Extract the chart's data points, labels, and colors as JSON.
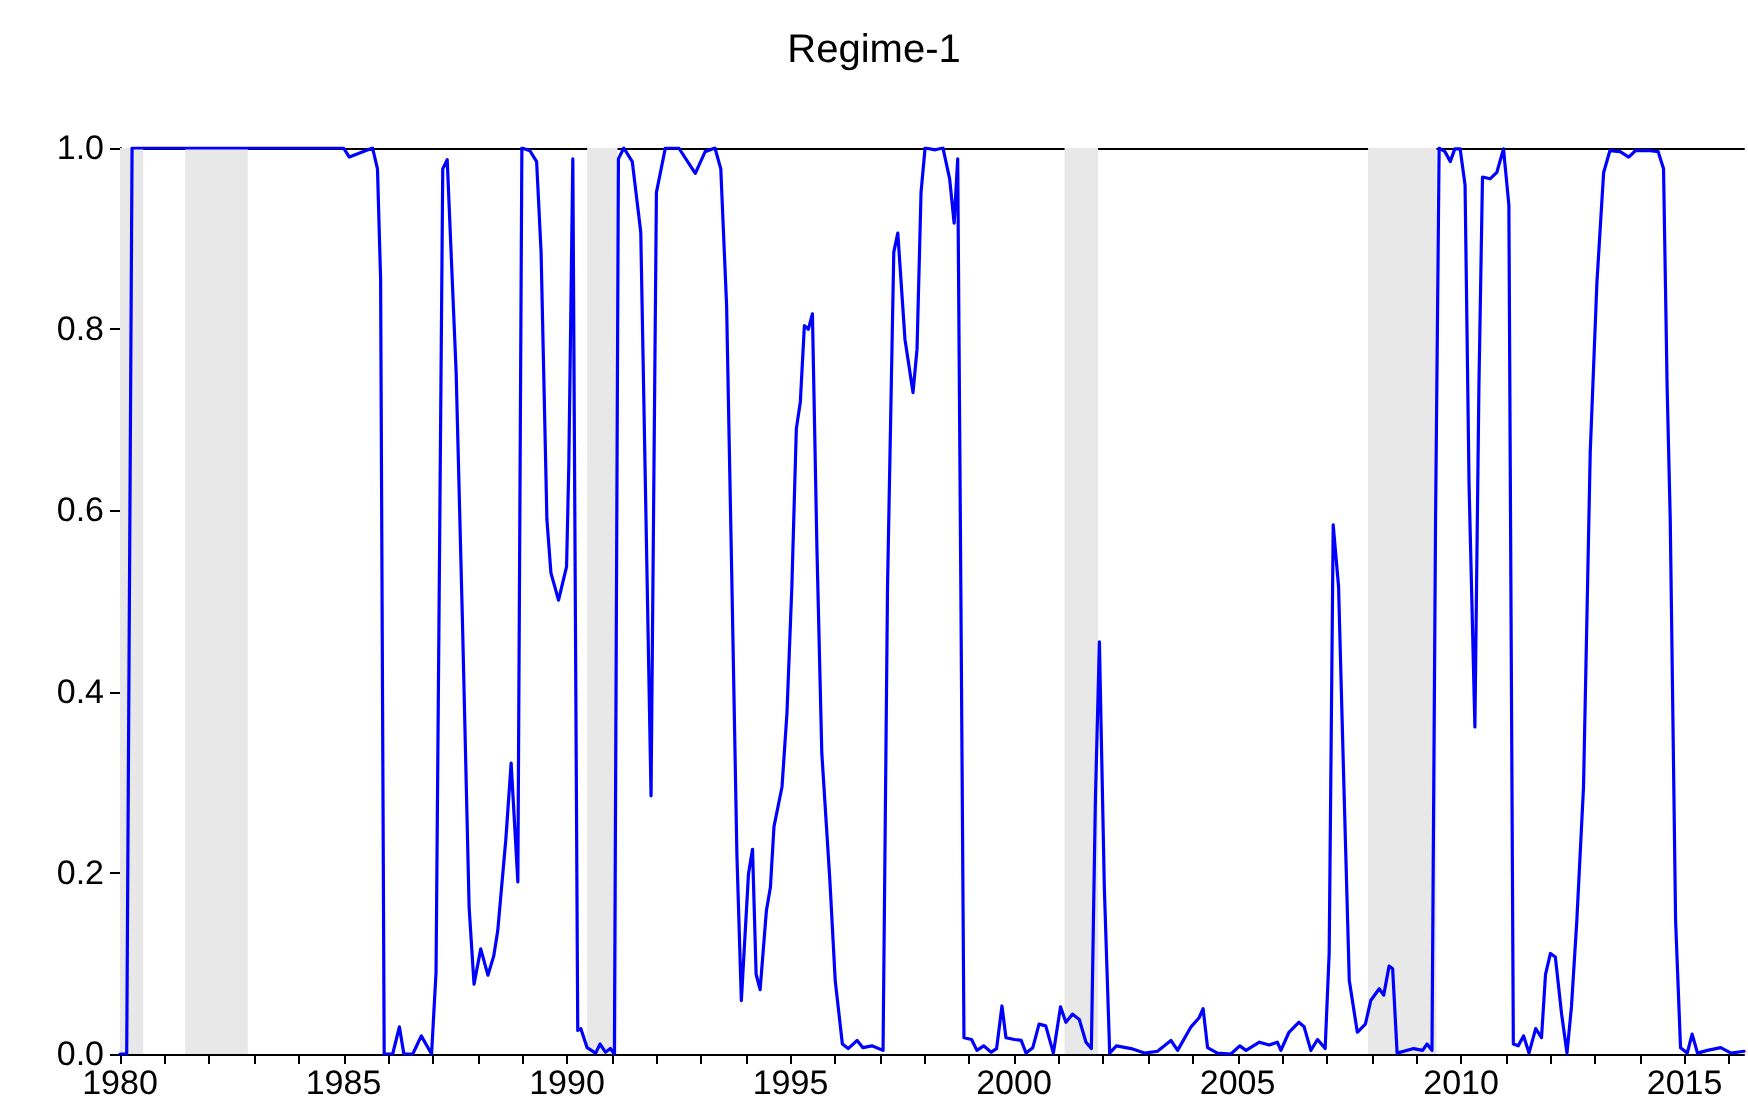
{
  "chart_data": {
    "type": "line",
    "title": "Regime-1",
    "x": [
      1980.0,
      1980.15,
      1980.27,
      1985.0,
      1985.13,
      1985.65,
      1985.76,
      1985.83,
      1985.91,
      1986.1,
      1986.25,
      1986.35,
      1986.55,
      1986.74,
      1986.97,
      1987.07,
      1987.22,
      1987.32,
      1987.52,
      1987.66,
      1987.81,
      1987.92,
      1988.07,
      1988.23,
      1988.36,
      1988.45,
      1988.63,
      1988.75,
      1988.9,
      1988.99,
      1989.17,
      1989.32,
      1989.42,
      1989.55,
      1989.64,
      1989.81,
      1989.99,
      1990.04,
      1990.13,
      1990.24,
      1990.31,
      1990.45,
      1990.64,
      1990.74,
      1990.86,
      1990.97,
      1991.06,
      1991.15,
      1991.27,
      1991.46,
      1991.65,
      1991.88,
      1992.0,
      1992.2,
      1992.5,
      1992.87,
      1993.09,
      1993.31,
      1993.44,
      1993.57,
      1993.69,
      1993.8,
      1993.9,
      1994.06,
      1994.15,
      1994.23,
      1994.32,
      1994.46,
      1994.55,
      1994.63,
      1994.81,
      1994.92,
      1995.03,
      1995.13,
      1995.22,
      1995.31,
      1995.4,
      1995.49,
      1995.59,
      1995.7,
      1995.88,
      1996.0,
      1996.16,
      1996.29,
      1996.49,
      1996.62,
      1996.82,
      1997.07,
      1997.17,
      1997.31,
      1997.4,
      1997.56,
      1997.74,
      1997.83,
      1997.92,
      1998.01,
      1998.24,
      1998.41,
      1998.56,
      1998.66,
      1998.74,
      1998.81,
      1998.88,
      1999.05,
      1999.17,
      1999.32,
      1999.49,
      1999.61,
      1999.73,
      1999.82,
      2000.01,
      2000.16,
      2000.27,
      2000.42,
      2000.56,
      2000.71,
      2000.88,
      2001.04,
      2001.16,
      2001.31,
      2001.46,
      2001.61,
      2001.73,
      2001.82,
      2001.91,
      2002.02,
      2002.14,
      2002.29,
      2002.62,
      2002.92,
      2003.21,
      2003.51,
      2003.66,
      2003.96,
      2004.14,
      2004.23,
      2004.33,
      2004.55,
      2004.85,
      2005.05,
      2005.19,
      2005.49,
      2005.71,
      2005.89,
      2005.97,
      2006.15,
      2006.37,
      2006.49,
      2006.64,
      2006.79,
      2006.96,
      2007.05,
      2007.14,
      2007.26,
      2007.38,
      2007.5,
      2007.68,
      2007.86,
      2007.98,
      2008.17,
      2008.27,
      2008.39,
      2008.47,
      2008.57,
      2008.94,
      2009.14,
      2009.24,
      2009.35,
      2009.43,
      2009.51,
      2009.64,
      2009.76,
      2009.86,
      2009.98,
      2010.09,
      2010.18,
      2010.31,
      2010.4,
      2010.48,
      2010.65,
      2010.8,
      2010.95,
      2011.07,
      2011.17,
      2011.28,
      2011.4,
      2011.52,
      2011.67,
      2011.8,
      2011.89,
      2012.0,
      2012.11,
      2012.25,
      2012.37,
      2012.47,
      2012.59,
      2012.74,
      2012.89,
      2013.04,
      2013.19,
      2013.33,
      2013.56,
      2013.75,
      2013.9,
      2014.23,
      2014.41,
      2014.53,
      2014.61,
      2014.68,
      2014.8,
      2014.91,
      2015.06,
      2015.17,
      2015.29,
      2015.51,
      2015.81,
      2016.04,
      2016.33
    ],
    "series": [
      {
        "color": "#0000ff",
        "values": [
          0,
          0,
          1.0,
          1.0,
          0.99,
          1.0,
          0.977,
          0.855,
          0.0,
          0,
          0.03,
          0,
          0,
          0.02,
          0,
          0.09,
          0.977,
          0.987,
          0.752,
          0.479,
          0.162,
          0.077,
          0.116,
          0.087,
          0.108,
          0.136,
          0.236,
          0.321,
          0.19,
          1.0,
          0.997,
          0.985,
          0.885,
          0.59,
          0.531,
          0.501,
          0.538,
          0.649,
          0.988,
          0.026,
          0.028,
          0.007,
          0.001,
          0.011,
          0.002,
          0.006,
          0,
          0.988,
          1.0,
          0.985,
          0.907,
          0.285,
          0.951,
          1.0,
          1.0,
          0.972,
          0.996,
          1.0,
          0.977,
          0.826,
          0.516,
          0.221,
          0.059,
          0.199,
          0.226,
          0.088,
          0.071,
          0.158,
          0.184,
          0.251,
          0.295,
          0.376,
          0.516,
          0.69,
          0.72,
          0.804,
          0.8,
          0.817,
          0.56,
          0.332,
          0.192,
          0.081,
          0.011,
          0.006,
          0.015,
          0.007,
          0.009,
          0.004,
          0.516,
          0.885,
          0.906,
          0.789,
          0.73,
          0.778,
          0.951,
          1.0,
          0.998,
          1.0,
          0.966,
          0.917,
          0.988,
          0.516,
          0.018,
          0.016,
          0.004,
          0.009,
          0.002,
          0.006,
          0.053,
          0.018,
          0.016,
          0.015,
          0.001,
          0.007,
          0.033,
          0.031,
          0.001,
          0.052,
          0.035,
          0.044,
          0.038,
          0.013,
          0.006,
          0.28,
          0.455,
          0.184,
          0.001,
          0.009,
          0.006,
          0.001,
          0.003,
          0.015,
          0.004,
          0.03,
          0.04,
          0.05,
          0.007,
          0.001,
          0,
          0.009,
          0.004,
          0.013,
          0.01,
          0.013,
          0.004,
          0.024,
          0.035,
          0.03,
          0.004,
          0.016,
          0.006,
          0.111,
          0.584,
          0.516,
          0.295,
          0.081,
          0.024,
          0.033,
          0.059,
          0.072,
          0.065,
          0.097,
          0.094,
          0.001,
          0.006,
          0.004,
          0.011,
          0.004,
          0.59,
          1.0,
          0.996,
          0.985,
          0.999,
          0.999,
          0.959,
          0.627,
          0.361,
          0.737,
          0.968,
          0.966,
          0.973,
          0.999,
          0.937,
          0.011,
          0.009,
          0.02,
          0.001,
          0.028,
          0.018,
          0.088,
          0.111,
          0.107,
          0.044,
          0.001,
          0.052,
          0.147,
          0.295,
          0.664,
          0.852,
          0.973,
          0.997,
          0.996,
          0.99,
          0.997,
          0.997,
          0.996,
          0.977,
          0.737,
          0.59,
          0.147,
          0.007,
          0.001,
          0.022,
          0.001,
          0.004,
          0.007,
          0.001,
          0.003
        ]
      }
    ],
    "xlim": [
      1980,
      2016.33
    ],
    "xticks": [
      1980,
      {
        "value": 1981,
        "label": null
      },
      {
        "value": 1982,
        "label": null
      },
      {
        "value": 1983,
        "label": null
      },
      {
        "value": 1984,
        "label": null
      },
      1985,
      {
        "value": 1986,
        "label": null
      },
      {
        "value": 1987,
        "label": null
      },
      {
        "value": 1988,
        "label": null
      },
      {
        "value": 1989,
        "label": null
      },
      1990,
      {
        "value": 1991,
        "label": null
      },
      {
        "value": 1992,
        "label": null
      },
      {
        "value": 1993,
        "label": null
      },
      {
        "value": 1994,
        "label": null
      },
      1995,
      {
        "value": 1996,
        "label": null
      },
      {
        "value": 1997,
        "label": null
      },
      {
        "value": 1998,
        "label": null
      },
      {
        "value": 1999,
        "label": null
      },
      2000,
      {
        "value": 2001,
        "label": null
      },
      {
        "value": 2002,
        "label": null
      },
      {
        "value": 2003,
        "label": null
      },
      {
        "value": 2004,
        "label": null
      },
      2005,
      {
        "value": 2006,
        "label": null
      },
      {
        "value": 2007,
        "label": null
      },
      {
        "value": 2008,
        "label": null
      },
      {
        "value": 2009,
        "label": null
      },
      2010,
      {
        "value": 2011,
        "label": null
      },
      {
        "value": 2012,
        "label": null
      },
      {
        "value": 2013,
        "label": null
      },
      {
        "value": 2014,
        "label": null
      },
      2015,
      {
        "value": 2016,
        "label": null
      }
    ],
    "ylim": [
      0,
      1
    ],
    "yticks": [
      {
        "value": 0,
        "label": "0.0"
      },
      {
        "value": 0.2,
        "label": "0.2"
      },
      {
        "value": 0.4,
        "label": "0.4"
      },
      {
        "value": 0.6,
        "label": "0.6"
      },
      {
        "value": 0.8,
        "label": "0.8"
      },
      {
        "value": 1,
        "label": "1.0"
      }
    ],
    "bands": [
      {
        "axis": "x",
        "from": 1980.0,
        "to": 1980.52,
        "color": "#e8e8e8"
      },
      {
        "axis": "x",
        "from": 1981.46,
        "to": 1982.86,
        "color": "#e8e8e8"
      },
      {
        "axis": "x",
        "from": 1990.45,
        "to": 1991.13,
        "color": "#e8e8e8"
      },
      {
        "axis": "x",
        "from": 2001.13,
        "to": 2001.88,
        "color": "#e8e8e8"
      },
      {
        "axis": "x",
        "from": 2007.92,
        "to": 2009.45,
        "color": "#e8e8e8"
      }
    ],
    "grid": false,
    "marker": "none",
    "line_style": "solid"
  }
}
